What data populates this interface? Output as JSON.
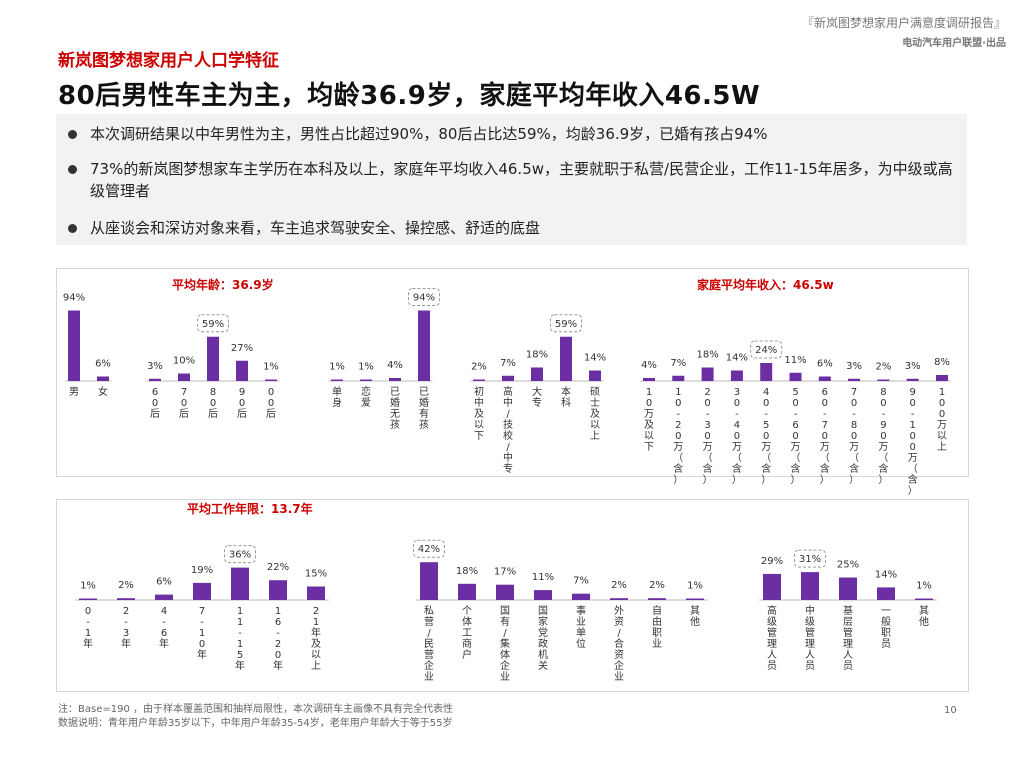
{
  "header": {
    "report_title": "『新岚图梦想家用户满意度调研报告』",
    "report_org": "电动汽车用户联盟·出品"
  },
  "subtitle": "新岚图梦想家用户人口学特征",
  "headline": "80后男性车主为主，均龄36.9岁，家庭平均年收入46.5W",
  "summary": {
    "bullets": [
      "本次调研结果以中年男性为主，男性占比超过90%，80后占比达59%，均龄36.9岁，已婚有孩占94%",
      "73%的新岚图梦想家车主学历在本科及以上，家庭年平均收入46.5w，主要就职于私营/民营企业，工作11-15年居多，为中级或高级管理者",
      "从座谈会和深访对象来看，车主追求驾驶安全、操控感、舒适的底盘"
    ]
  },
  "footnote": {
    "line1": "注：Base=190 ，由于样本覆盖范围和抽样局限性，本次调研车主画像不具有完全代表性",
    "line2": "数据说明：青年用户年龄35岁以下，中年用户年龄35-54岁，老年用户年龄大于等于55岁"
  },
  "page_number": "10",
  "colors": {
    "bar": "#6b2fa3",
    "highlight_text": "#cc0000",
    "axis": "#bbbbbb",
    "dashed_box": "#999999"
  },
  "chart_data": [
    {
      "type": "bar",
      "annotations": [
        "平均年龄：36.9岁",
        "家庭平均年收入：46.5w"
      ],
      "ylim": [
        0,
        100
      ],
      "groups": [
        {
          "categories": [
            "男",
            "女"
          ],
          "values": [
            94,
            6
          ],
          "labels": [
            "94%",
            "6%"
          ]
        },
        {
          "categories": [
            "60后",
            "70后",
            "80后",
            "90后",
            "00后"
          ],
          "values": [
            3,
            10,
            59,
            27,
            1
          ],
          "labels": [
            "3%",
            "10%",
            "59%",
            "27%",
            "1%"
          ],
          "highlight": 2
        },
        {
          "categories": [
            "单身",
            "恋爱",
            "已婚无孩",
            "已婚有孩"
          ],
          "values": [
            1,
            1,
            4,
            94
          ],
          "labels": [
            "1%",
            "1%",
            "4%",
            "94%"
          ],
          "highlight": 3
        },
        {
          "categories": [
            "初中及以下",
            "高中/技校/中专",
            "大专",
            "本科",
            "硕士及以上"
          ],
          "values": [
            2,
            7,
            18,
            59,
            14
          ],
          "labels": [
            "2%",
            "7%",
            "18%",
            "59%",
            "14%"
          ],
          "highlight": 3
        },
        {
          "categories": [
            "10万及以下",
            "10-20万（含）",
            "20-30万（含）",
            "30-40万（含）",
            "40-50万（含）",
            "50-60万（含）",
            "60-70万（含）",
            "70-80万（含）",
            "80-90万（含）",
            "90-100万（含）",
            "100万以上"
          ],
          "values": [
            4,
            7,
            18,
            14,
            24,
            11,
            6,
            3,
            2,
            3,
            8
          ],
          "labels": [
            "4%",
            "7%",
            "18%",
            "14%",
            "24%",
            "11%",
            "6%",
            "3%",
            "2%",
            "3%",
            "8%"
          ],
          "highlight": 4
        }
      ]
    },
    {
      "type": "bar",
      "annotations": [
        "平均工作年限：13.7年"
      ],
      "ylim": [
        0,
        100
      ],
      "groups": [
        {
          "categories": [
            "0-1年",
            "2-3年",
            "4-6年",
            "7-10年",
            "11-15年",
            "16-20年",
            "21年及以上"
          ],
          "values": [
            1,
            2,
            6,
            19,
            36,
            22,
            15
          ],
          "labels": [
            "1%",
            "2%",
            "6%",
            "19%",
            "36%",
            "22%",
            "15%"
          ],
          "highlight": 4
        },
        {
          "categories": [
            "私营/民营企业",
            "个体工商户",
            "国有/集体企业",
            "国家党政机关",
            "事业单位",
            "外资/合资企业",
            "自由职业",
            "其他"
          ],
          "values": [
            42,
            18,
            17,
            11,
            7,
            2,
            2,
            1
          ],
          "labels": [
            "42%",
            "18%",
            "17%",
            "11%",
            "7%",
            "2%",
            "2%",
            "1%"
          ],
          "highlight": 0
        },
        {
          "categories": [
            "高级管理人员",
            "中级管理人员",
            "基层管理人员",
            "一般职员",
            "其他"
          ],
          "values": [
            29,
            31,
            25,
            14,
            1
          ],
          "labels": [
            "29%",
            "31%",
            "25%",
            "14%",
            "1%"
          ],
          "highlight": 1
        }
      ]
    }
  ]
}
